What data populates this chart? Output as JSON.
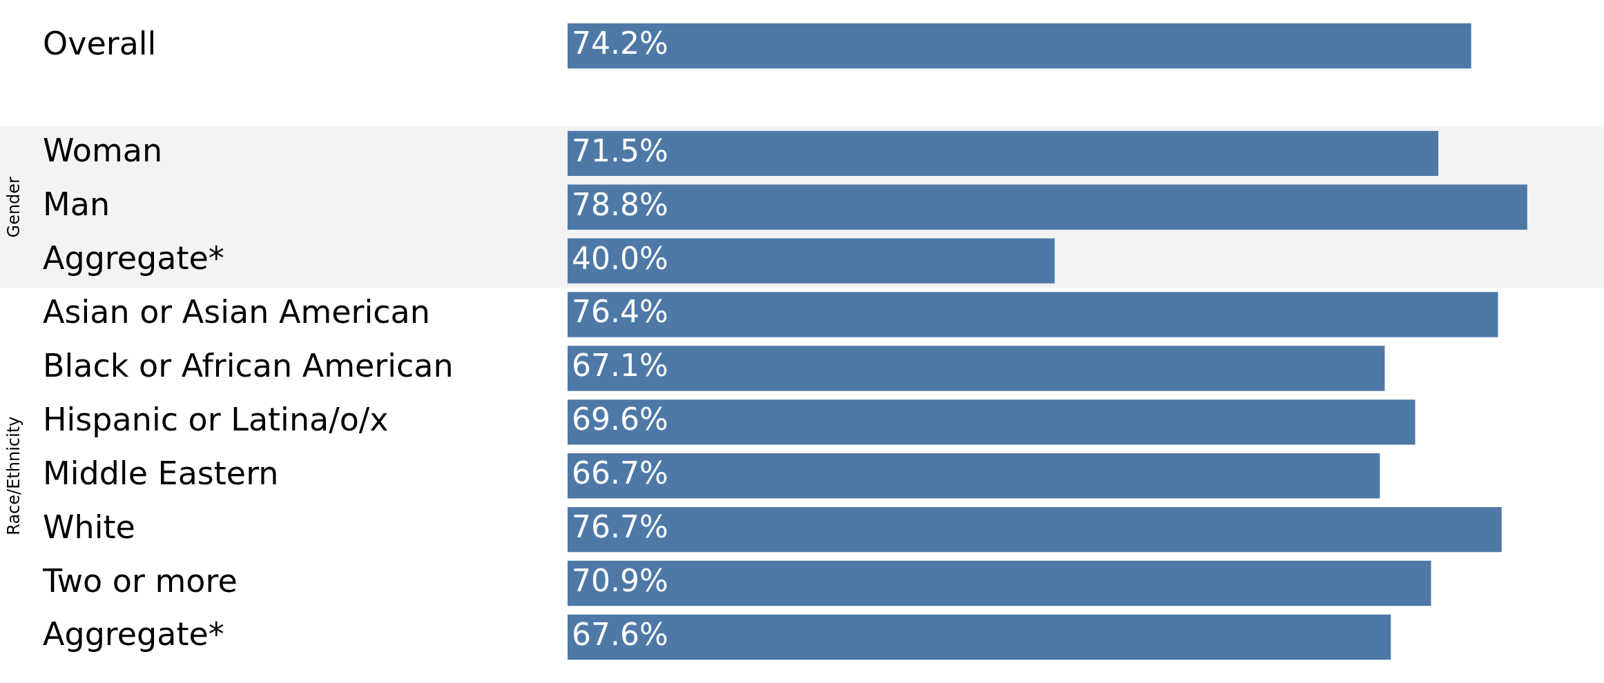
{
  "chart_data": {
    "type": "bar",
    "orientation": "horizontal",
    "categories": [
      "Overall",
      null,
      "Woman",
      "Man",
      "Aggregate*",
      "Asian or Asian American",
      "Black or African American",
      "Hispanic or Latina/o/x",
      "Middle Eastern",
      "White",
      "Two or more",
      "Aggregate*"
    ],
    "values": [
      74.2,
      null,
      71.5,
      78.8,
      40.0,
      76.4,
      67.1,
      69.6,
      66.7,
      76.7,
      70.9,
      67.6
    ],
    "color": "#4e79a7",
    "value_labels": [
      "74.2%",
      null,
      "71.5%",
      "78.8%",
      "40.0%",
      "76.4%",
      "67.1%",
      "69.6%",
      "66.7%",
      "76.7%",
      "70.9%",
      "67.6%"
    ],
    "bands": [
      {
        "axis": "y",
        "from": "Woman",
        "to": "Aggregate*",
        "label": "Gender",
        "color": "#f3f3f3"
      }
    ],
    "annotations": [
      "Race/Ethnicity"
    ],
    "tick_labels": "y",
    "legend": false,
    "grid": false
  }
}
